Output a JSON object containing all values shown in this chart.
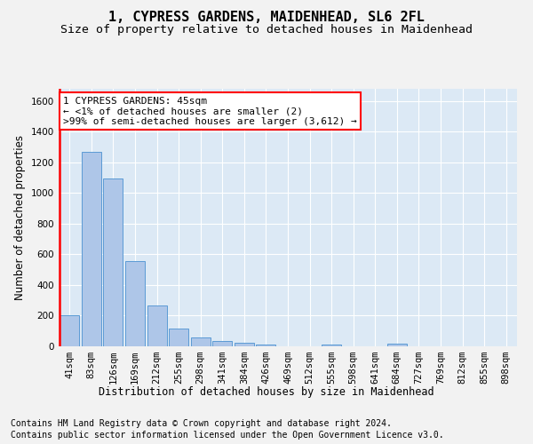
{
  "title": "1, CYPRESS GARDENS, MAIDENHEAD, SL6 2FL",
  "subtitle": "Size of property relative to detached houses in Maidenhead",
  "xlabel": "Distribution of detached houses by size in Maidenhead",
  "ylabel": "Number of detached properties",
  "footnote1": "Contains HM Land Registry data © Crown copyright and database right 2024.",
  "footnote2": "Contains public sector information licensed under the Open Government Licence v3.0.",
  "categories": [
    "41sqm",
    "83sqm",
    "126sqm",
    "169sqm",
    "212sqm",
    "255sqm",
    "298sqm",
    "341sqm",
    "384sqm",
    "426sqm",
    "469sqm",
    "512sqm",
    "555sqm",
    "598sqm",
    "641sqm",
    "684sqm",
    "727sqm",
    "769sqm",
    "812sqm",
    "855sqm",
    "898sqm"
  ],
  "values": [
    200,
    1270,
    1095,
    555,
    265,
    118,
    58,
    32,
    22,
    10,
    0,
    0,
    12,
    0,
    0,
    20,
    0,
    0,
    0,
    0,
    0
  ],
  "bar_color": "#aec6e8",
  "bar_edge_color": "#5b9bd5",
  "annotation_text_line1": "1 CYPRESS GARDENS: 45sqm",
  "annotation_text_line2": "← <1% of detached houses are smaller (2)",
  "annotation_text_line3": ">99% of semi-detached houses are larger (3,612) →",
  "annotation_box_color": "#ffffff",
  "annotation_box_edge_color": "#ff0000",
  "ylim": [
    0,
    1680
  ],
  "background_color": "#dce9f5",
  "plot_bg_color": "#dce9f5",
  "fig_bg_color": "#f2f2f2",
  "grid_color": "#ffffff",
  "title_fontsize": 11,
  "subtitle_fontsize": 9.5,
  "axis_label_fontsize": 8.5,
  "tick_fontsize": 7.5,
  "annotation_fontsize": 8,
  "footnote_fontsize": 7
}
